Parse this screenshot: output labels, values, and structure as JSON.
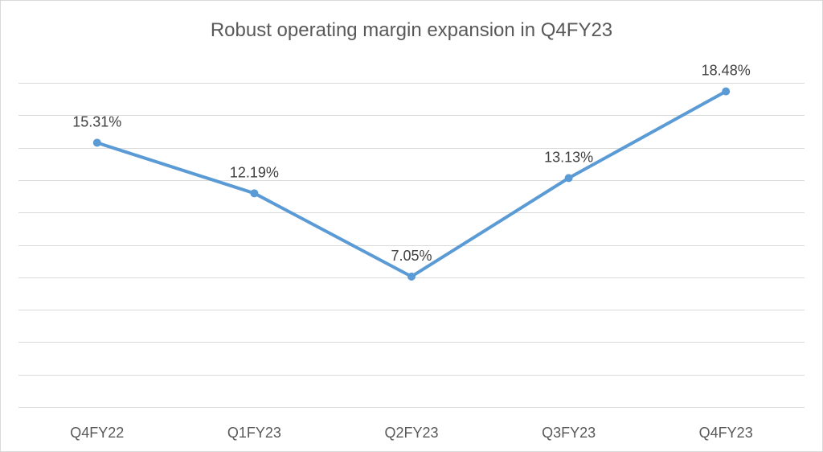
{
  "chart_data": {
    "type": "line",
    "title": "Robust operating margin expansion in Q4FY23",
    "categories": [
      "Q4FY22",
      "Q1FY23",
      "Q2FY23",
      "Q3FY23",
      "Q4FY23"
    ],
    "series": [
      {
        "values": [
          15.31,
          12.19,
          7.05,
          13.13,
          18.48
        ],
        "data_labels": [
          "15.31%",
          "12.19%",
          "7.05%",
          "13.13%",
          "18.48%"
        ],
        "color": "#5b9bd5"
      }
    ],
    "xlabel": "",
    "ylabel": "",
    "ylim": [
      -1,
      20
    ],
    "ystep": 2,
    "grid": true,
    "legend": "none"
  }
}
